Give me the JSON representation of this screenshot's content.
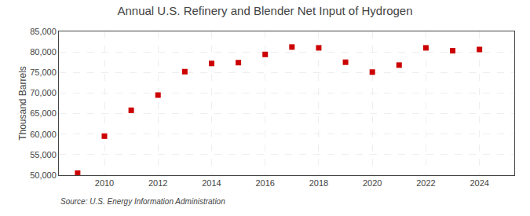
{
  "chart_data": {
    "type": "scatter",
    "title": "Annual U.S. Refinery and Blender Net Input of Hydrogen",
    "ylabel": "Thousand Barrels",
    "annotations": [
      "Source: U.S. Energy Information Administration"
    ],
    "x": [
      2009,
      2010,
      2011,
      2012,
      2013,
      2014,
      2015,
      2016,
      2017,
      2018,
      2019,
      2020,
      2021,
      2022,
      2023,
      2024
    ],
    "values": [
      50500,
      59500,
      65800,
      69500,
      75200,
      77200,
      77400,
      79400,
      81200,
      81000,
      77500,
      75100,
      76800,
      81000,
      80300,
      80600
    ],
    "color": "#cc0000",
    "marker": "square",
    "xlim": [
      2008.3,
      2025.3
    ],
    "xticks": [
      2010,
      2012,
      2014,
      2016,
      2018,
      2020,
      2022,
      2024
    ],
    "ylim": [
      50000,
      85000
    ],
    "yticks": [
      {
        "value": 50000,
        "label": "50,000"
      },
      {
        "value": 55000,
        "label": "55,000"
      },
      {
        "value": 60000,
        "label": "60,000"
      },
      {
        "value": 65000,
        "label": "65,000"
      },
      {
        "value": 70000,
        "label": "70,000"
      },
      {
        "value": 75000,
        "label": "75,000"
      },
      {
        "value": 80000,
        "label": "80,000"
      },
      {
        "value": 85000,
        "label": "85,000"
      }
    ],
    "grid": true
  }
}
